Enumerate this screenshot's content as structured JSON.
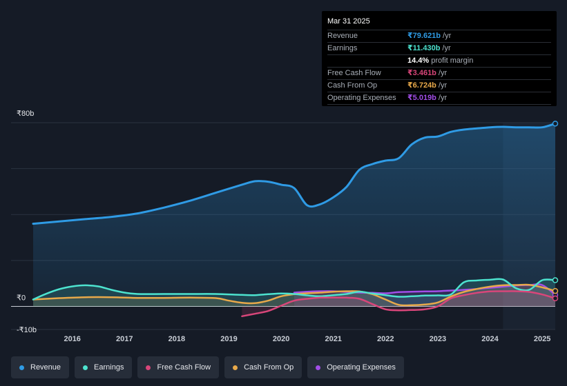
{
  "tooltip": {
    "date": "Mar 31 2025",
    "rows": [
      {
        "label": "Revenue",
        "value": "₹79.621b",
        "unit": "/yr",
        "color": "#2f9be5"
      },
      {
        "label": "Earnings",
        "value": "₹11.430b",
        "unit": "/yr",
        "color": "#4de3cf"
      },
      {
        "label": "",
        "value": "14.4%",
        "unit": "profit margin",
        "color": "#ffffff"
      },
      {
        "label": "Free Cash Flow",
        "value": "₹3.461b",
        "unit": "/yr",
        "color": "#d9467a"
      },
      {
        "label": "Cash From Op",
        "value": "₹6.724b",
        "unit": "/yr",
        "color": "#e8a94a"
      },
      {
        "label": "Operating Expenses",
        "value": "₹5.019b",
        "unit": "/yr",
        "color": "#a24ee8"
      }
    ]
  },
  "legend": [
    {
      "label": "Revenue",
      "color": "#2f9be5"
    },
    {
      "label": "Earnings",
      "color": "#4de3cf"
    },
    {
      "label": "Free Cash Flow",
      "color": "#d9467a"
    },
    {
      "label": "Cash From Op",
      "color": "#e8a94a"
    },
    {
      "label": "Operating Expenses",
      "color": "#a24ee8"
    }
  ],
  "chart_data": {
    "type": "area",
    "title": "",
    "y_tick_labels": [
      "₹80b",
      "₹0",
      "-₹10b"
    ],
    "ylim": [
      -10,
      80
    ],
    "xlim": [
      2015.25,
      2025.25
    ],
    "x_tick_labels": [
      "2016",
      "2017",
      "2018",
      "2019",
      "2020",
      "2021",
      "2022",
      "2023",
      "2024",
      "2025"
    ],
    "x_ticks": [
      2016,
      2017,
      2018,
      2019,
      2020,
      2021,
      2022,
      2023,
      2024,
      2025
    ],
    "forecast_shade_start": 2024.25,
    "series": [
      {
        "name": "Revenue",
        "color": "#2f9be5",
        "fill": true,
        "x": [
          2015.25,
          2015.75,
          2016.25,
          2016.75,
          2017.25,
          2017.75,
          2018.25,
          2018.75,
          2019.25,
          2019.5,
          2019.75,
          2020.0,
          2020.25,
          2020.5,
          2020.75,
          2021.0,
          2021.25,
          2021.5,
          2021.75,
          2022.0,
          2022.25,
          2022.5,
          2022.75,
          2023.0,
          2023.25,
          2023.5,
          2023.75,
          2024.0,
          2024.25,
          2024.5,
          2024.75,
          2025.0,
          2025.25
        ],
        "y": [
          36,
          37,
          38,
          39,
          40.5,
          43,
          46,
          49.5,
          53,
          54.5,
          54.3,
          53,
          51.5,
          44,
          44.5,
          47.5,
          52,
          59.5,
          62,
          63.5,
          64.5,
          70.5,
          73.5,
          74,
          76,
          77,
          77.5,
          78,
          78.2,
          78,
          78,
          78,
          79.6
        ]
      },
      {
        "name": "Earnings",
        "color": "#4de3cf",
        "fill": true,
        "x": [
          2015.25,
          2015.5,
          2015.75,
          2016.0,
          2016.25,
          2016.5,
          2016.75,
          2017.0,
          2017.25,
          2017.75,
          2018.25,
          2018.75,
          2019.25,
          2019.5,
          2019.75,
          2020.0,
          2020.25,
          2020.5,
          2020.75,
          2021.0,
          2021.25,
          2021.5,
          2021.75,
          2022.0,
          2022.25,
          2022.5,
          2022.75,
          2023.0,
          2023.25,
          2023.5,
          2023.75,
          2024.0,
          2024.25,
          2024.5,
          2024.75,
          2025.0,
          2025.25
        ],
        "y": [
          3,
          5.5,
          7.5,
          8.7,
          9.2,
          8.7,
          7.2,
          6,
          5.4,
          5.4,
          5.4,
          5.4,
          5.0,
          4.9,
          5.3,
          5.6,
          5.4,
          4.8,
          4.4,
          4.9,
          5.4,
          6.4,
          5.6,
          4.9,
          4.2,
          4.4,
          4.7,
          4.8,
          5.2,
          10.5,
          11.3,
          11.6,
          11.7,
          7.9,
          7.2,
          11.4,
          11.4
        ]
      },
      {
        "name": "Free Cash Flow",
        "color": "#d9467a",
        "fill": true,
        "x": [
          2019.25,
          2019.5,
          2019.75,
          2020.0,
          2020.25,
          2020.5,
          2020.75,
          2021.0,
          2021.25,
          2021.5,
          2021.75,
          2022.0,
          2022.25,
          2022.5,
          2022.75,
          2023.0,
          2023.25,
          2023.5,
          2023.75,
          2024.0,
          2024.25,
          2024.5,
          2024.75,
          2025.0,
          2025.25
        ],
        "y": [
          -4.3,
          -3.2,
          -2.0,
          0.3,
          2.5,
          3.3,
          3.8,
          3.8,
          3.8,
          3.3,
          1.0,
          -1.3,
          -1.7,
          -1.6,
          -1.3,
          0.0,
          3.5,
          4.9,
          5.9,
          6.5,
          6.6,
          6.6,
          6.3,
          5.2,
          3.5
        ]
      },
      {
        "name": "Cash From Op",
        "color": "#e8a94a",
        "fill": true,
        "x": [
          2015.25,
          2015.75,
          2016.25,
          2016.75,
          2017.25,
          2017.75,
          2018.25,
          2018.75,
          2019.0,
          2019.25,
          2019.5,
          2019.75,
          2020.0,
          2020.25,
          2020.5,
          2020.75,
          2021.0,
          2021.25,
          2021.5,
          2021.75,
          2022.0,
          2022.25,
          2022.5,
          2022.75,
          2023.0,
          2023.25,
          2023.5,
          2023.75,
          2024.0,
          2024.25,
          2024.5,
          2024.75,
          2025.0,
          2025.25
        ],
        "y": [
          3.0,
          3.6,
          4.0,
          4.0,
          3.7,
          3.7,
          3.8,
          3.6,
          2.5,
          1.6,
          1.4,
          2.5,
          4.4,
          5.3,
          5.7,
          6.0,
          6.4,
          6.6,
          6.5,
          5.3,
          3.0,
          0.7,
          0.5,
          0.8,
          1.7,
          4.3,
          6.3,
          7.6,
          8.6,
          9.2,
          9.3,
          9.4,
          8.3,
          6.7
        ]
      },
      {
        "name": "Operating Expenses",
        "color": "#a24ee8",
        "fill": true,
        "x": [
          2020.25,
          2020.5,
          2020.75,
          2021.0,
          2021.25,
          2021.5,
          2021.75,
          2022.0,
          2022.25,
          2022.5,
          2022.75,
          2023.0,
          2023.25,
          2023.5,
          2023.75,
          2024.0,
          2024.25,
          2024.5,
          2024.75,
          2025.0,
          2025.25
        ],
        "y": [
          6.0,
          6.4,
          6.6,
          6.6,
          6.3,
          6.0,
          5.9,
          5.7,
          6.2,
          6.4,
          6.5,
          6.6,
          6.9,
          7.2,
          7.6,
          8.1,
          8.6,
          9.1,
          9.3,
          9.3,
          5.0
        ]
      }
    ]
  }
}
